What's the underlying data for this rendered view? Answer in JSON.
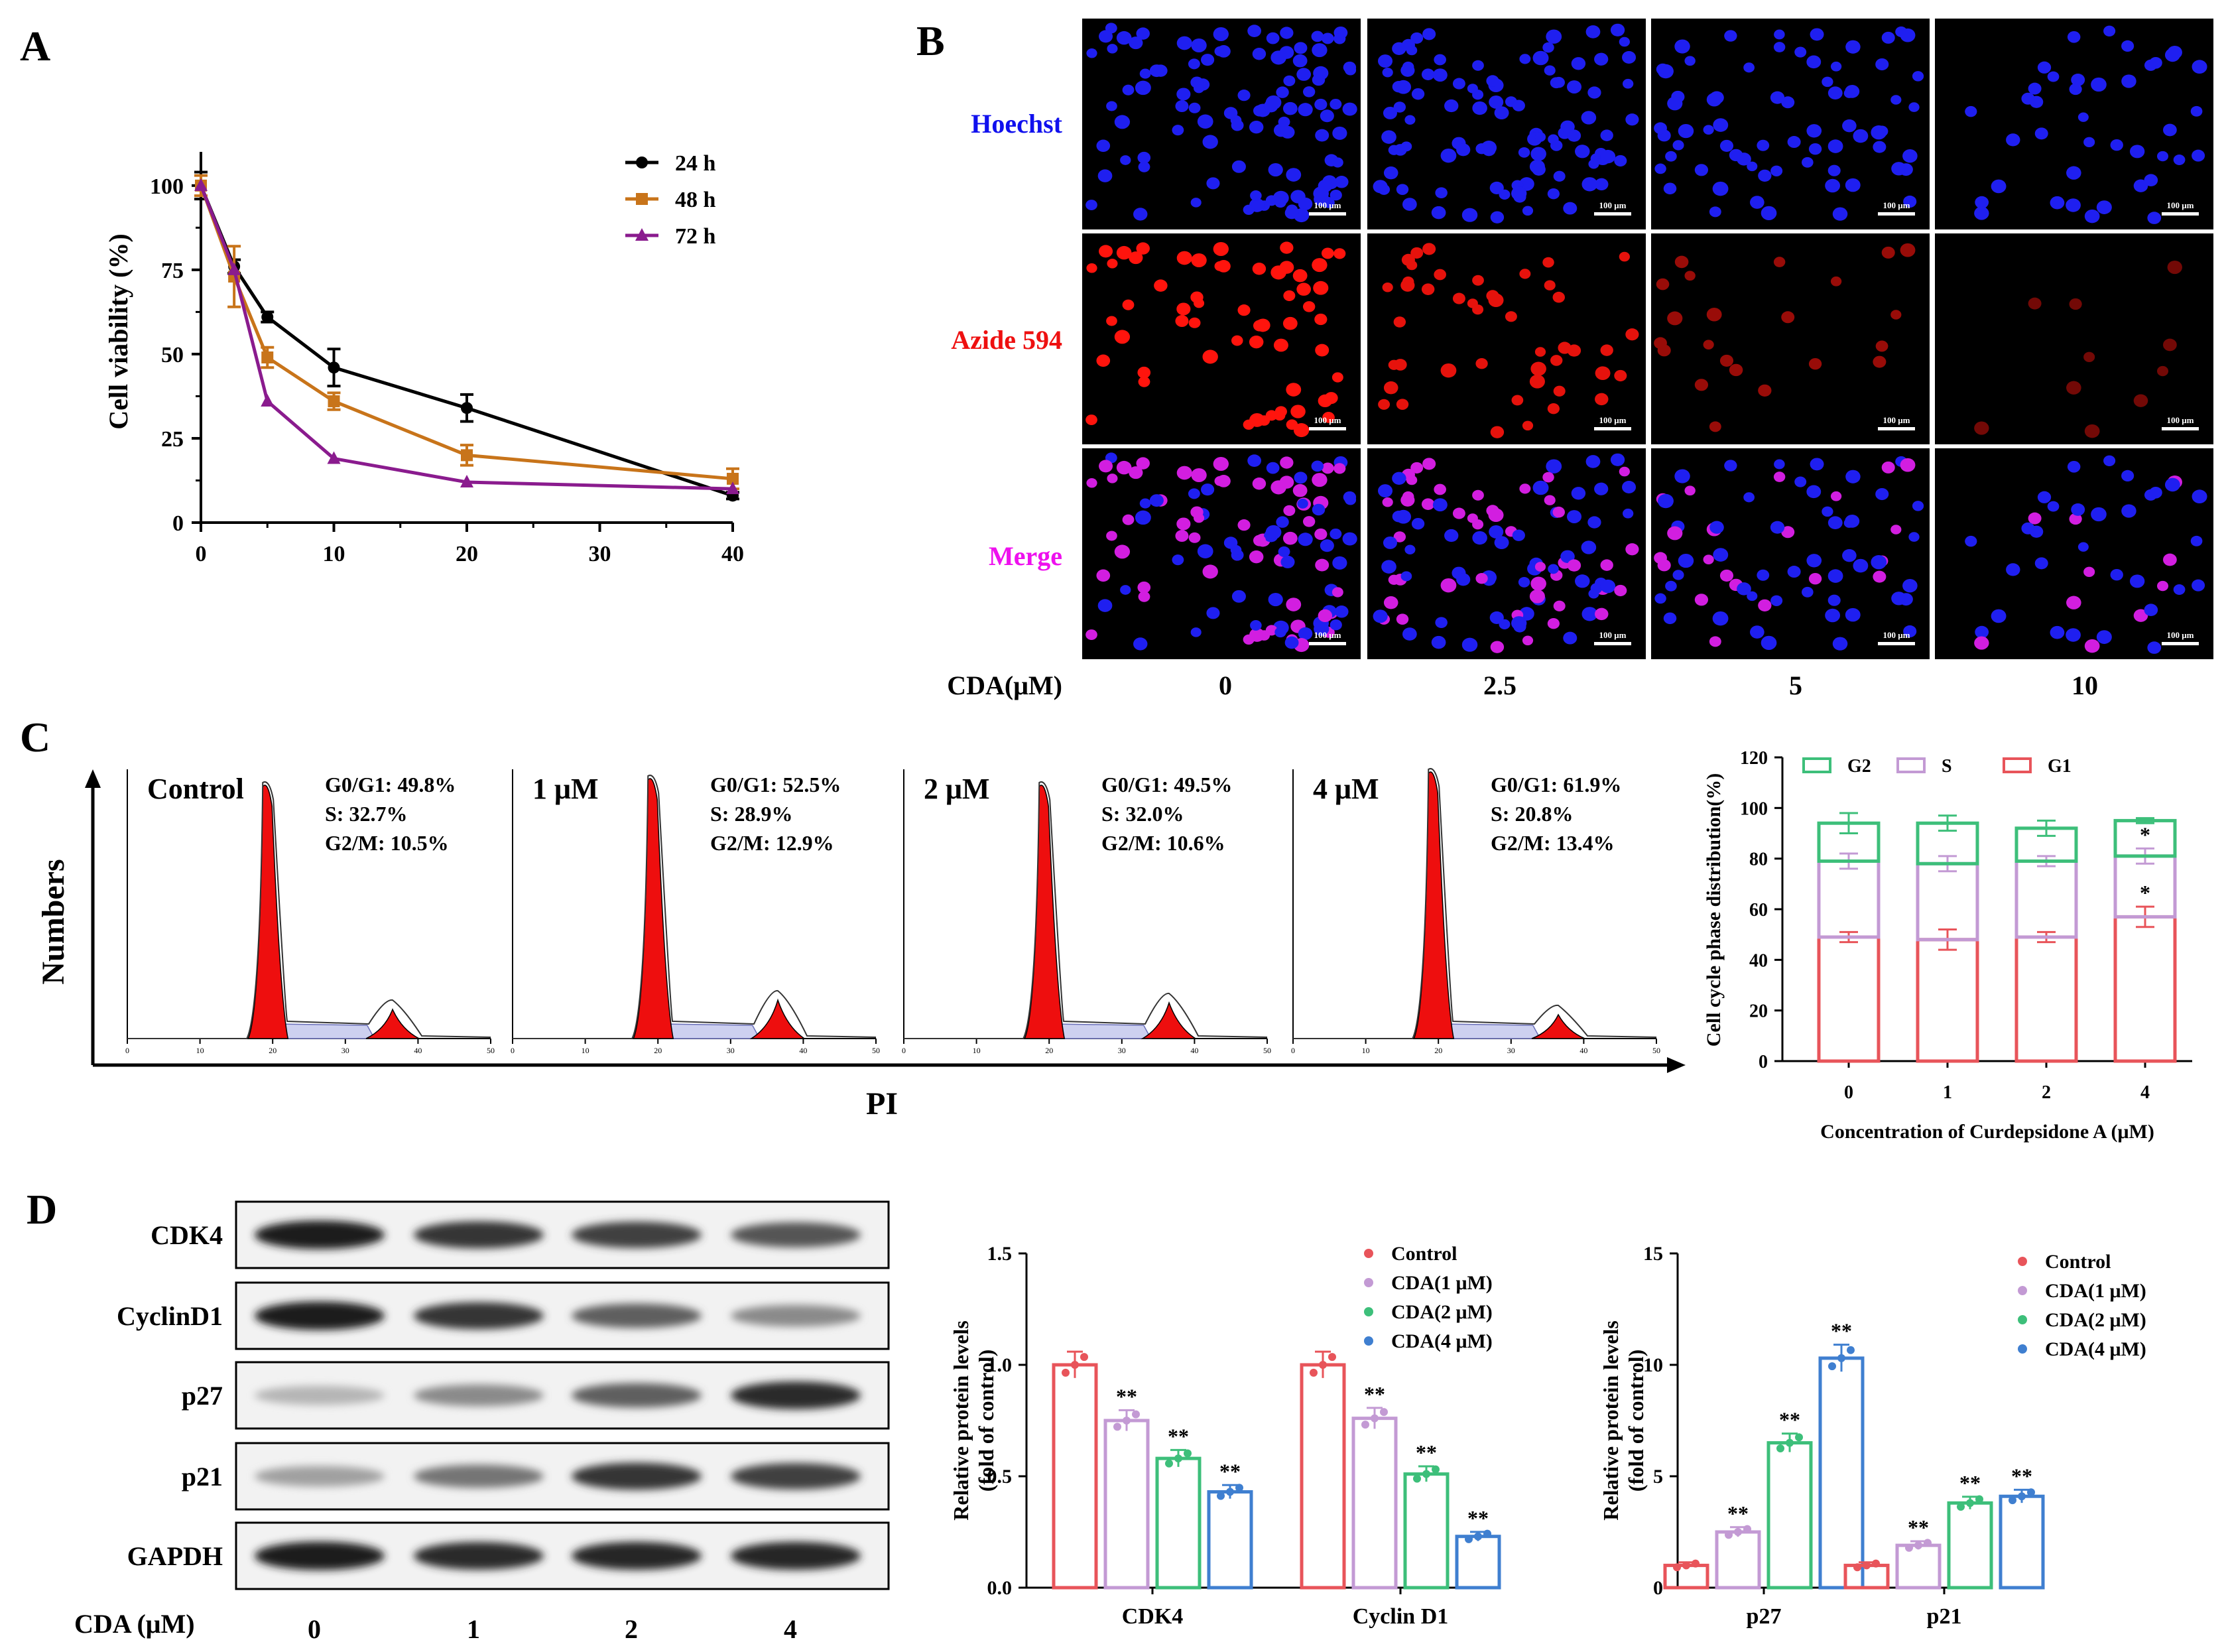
{
  "panels": {
    "a": "A",
    "b": "B",
    "c": "C",
    "d": "D"
  },
  "colors": {
    "black": "#000000",
    "orange": "#c8741a",
    "purple": "#8a1b8e",
    "g1": "#e8545a",
    "s": "#c39ad4",
    "g2": "#3dbf7a",
    "blue": "#3f7fd0",
    "hoechst": "#1010ee",
    "azide": "#ee1010",
    "merge": "#ee10ee"
  },
  "panel_a": {
    "chart_data": {
      "type": "line",
      "title": "",
      "xlabel": "",
      "ylabel": "Cell viability (%)",
      "x": [
        0,
        2.5,
        5,
        10,
        20,
        40
      ],
      "xlim": [
        0,
        40
      ],
      "ylim": [
        0,
        110
      ],
      "xticks": [
        "0",
        "10",
        "20",
        "30",
        "40"
      ],
      "yticks": [
        "0",
        "25",
        "50",
        "75",
        "100"
      ],
      "legend_position": "top-right",
      "series": [
        {
          "name": "24 h",
          "values": [
            100,
            76,
            61,
            46,
            34,
            8
          ],
          "err": [
            4,
            2,
            1.5,
            5.5,
            4,
            1
          ]
        },
        {
          "name": "48 h",
          "values": [
            100,
            73,
            49,
            36,
            20,
            13
          ],
          "err": [
            3,
            9,
            3,
            2.5,
            3,
            3
          ]
        },
        {
          "name": "72 h",
          "values": [
            100,
            75,
            36,
            19,
            12,
            10
          ],
          "err": [
            0,
            0,
            0,
            0,
            0,
            0
          ]
        }
      ]
    }
  },
  "panel_b": {
    "rows": [
      "Hoechst",
      "Azide 594",
      "Merge"
    ],
    "xlabel": "CDA(μM)",
    "columns": [
      "0",
      "2.5",
      "5",
      "10"
    ],
    "scale_bar": "100 μm"
  },
  "panel_c": {
    "ylabel": "Numbers",
    "xlabel": "PI",
    "histograms": [
      {
        "label": "Control",
        "stats": [
          "G0/G1: 49.8%",
          "S: 32.7%",
          "G2/M: 10.5%"
        ]
      },
      {
        "label": "1 μM",
        "stats": [
          "G0/G1: 52.5%",
          "S: 28.9%",
          "G2/M: 12.9%"
        ]
      },
      {
        "label": "2 μM",
        "stats": [
          "G0/G1: 49.5%",
          "S: 32.0%",
          "G2/M: 10.6%"
        ]
      },
      {
        "label": "4 μM",
        "stats": [
          "G0/G1: 61.9%",
          "S: 20.8%",
          "G2/M: 13.4%"
        ]
      }
    ],
    "hist_xticks": [
      "0",
      "10",
      "20",
      "30",
      "40",
      "50"
    ],
    "chart_data": {
      "type": "bar",
      "stacked": true,
      "categories": [
        "0",
        "1",
        "2",
        "4"
      ],
      "xlabel": "Concentration of Curdepsidone A (μM)",
      "ylabel": "Cell cycle phase distribution(%)",
      "ylim": [
        0,
        120
      ],
      "yticks": [
        "0",
        "20",
        "40",
        "60",
        "80",
        "100",
        "120"
      ],
      "legend_position": "top",
      "series": [
        {
          "name": "G1",
          "values": [
            49,
            48,
            49,
            57
          ],
          "err": [
            2,
            4,
            2,
            4
          ]
        },
        {
          "name": "S",
          "values": [
            30,
            30,
            30,
            24
          ],
          "err": [
            3,
            3,
            2,
            3
          ]
        },
        {
          "name": "G2",
          "values": [
            15,
            16,
            13,
            14
          ],
          "err": [
            4,
            3,
            3,
            1
          ]
        }
      ],
      "annotations": [
        {
          "category": "4",
          "series": "G1",
          "text": "*"
        },
        {
          "category": "4",
          "series": "S",
          "text": "*"
        }
      ]
    }
  },
  "panel_d": {
    "blot_labels": [
      "CDK4",
      "CyclinD1",
      "p27",
      "p21",
      "GAPDH"
    ],
    "xlabel": "CDA (μM)",
    "lanes": [
      "0",
      "1",
      "2",
      "4"
    ],
    "legend": [
      "Control",
      "CDA(1 μM)",
      "CDA(2 μM)",
      "CDA(4 μM)"
    ],
    "chart1": {
      "chart_data": {
        "type": "bar",
        "categories": [
          "CDK4",
          "Cyclin D1"
        ],
        "ylabel": "Relative protein levels\n(fold of control)",
        "ylim": [
          0,
          1.5
        ],
        "yticks": [
          "0.0",
          "0.5",
          "1.0",
          "1.5"
        ],
        "series": [
          {
            "name": "Control",
            "values": [
              1.0,
              1.0
            ]
          },
          {
            "name": "CDA(1 μM)",
            "values": [
              0.75,
              0.76
            ]
          },
          {
            "name": "CDA(2 μM)",
            "values": [
              0.58,
              0.51
            ]
          },
          {
            "name": "CDA(4 μM)",
            "values": [
              0.43,
              0.23
            ]
          }
        ],
        "significance": "**"
      }
    },
    "chart2": {
      "chart_data": {
        "type": "bar",
        "categories": [
          "p27",
          "p21"
        ],
        "ylabel": "Relative protein levels\n(fold of control)",
        "ylim": [
          0,
          15
        ],
        "yticks": [
          "0",
          "5",
          "10",
          "15"
        ],
        "series": [
          {
            "name": "Control",
            "values": [
              1.0,
              1.0
            ]
          },
          {
            "name": "CDA(1 μM)",
            "values": [
              2.5,
              1.9
            ]
          },
          {
            "name": "CDA(2 μM)",
            "values": [
              6.5,
              3.8
            ]
          },
          {
            "name": "CDA(4 μM)",
            "values": [
              10.3,
              4.1
            ]
          }
        ],
        "significance": "**"
      }
    }
  }
}
